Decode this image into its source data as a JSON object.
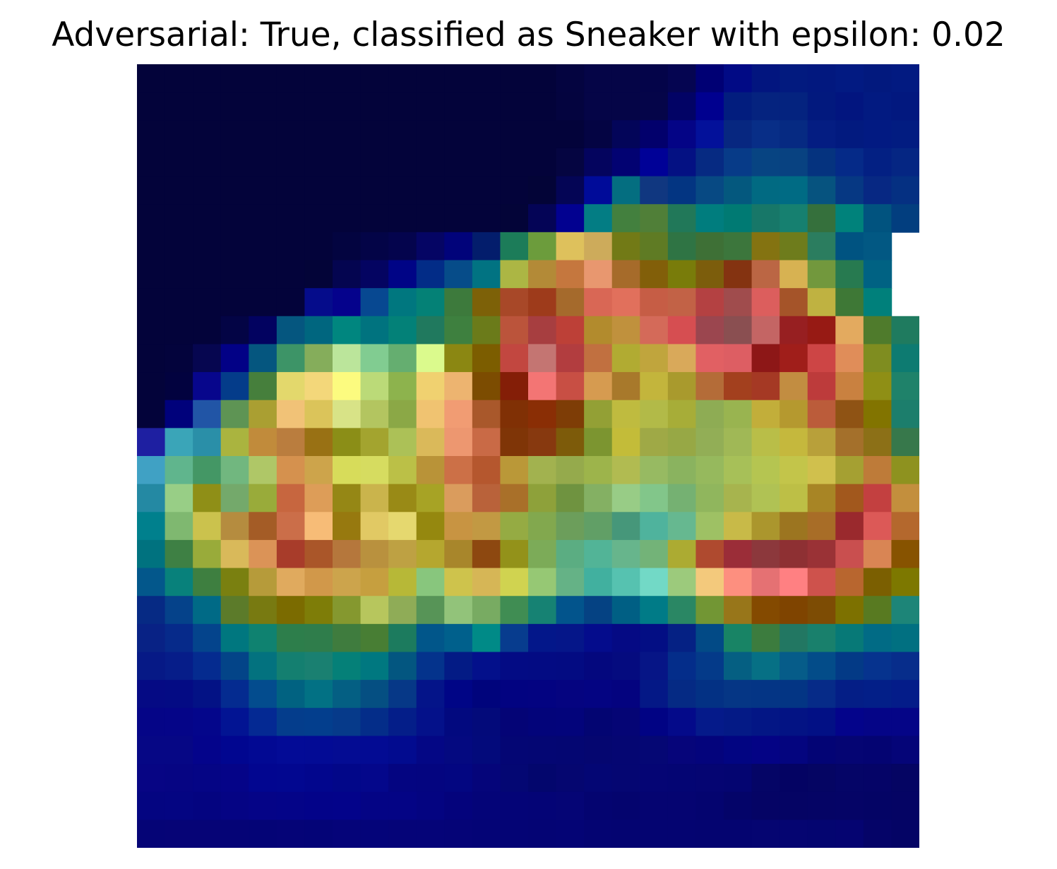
{
  "title": "Adversarial: True, classified as Sneaker with epsilon: 0.02",
  "chart_data": {
    "type": "heatmap",
    "title": "Adversarial: True, classified as Sneaker with epsilon: 0.02",
    "rows": 28,
    "cols": 28,
    "colormap": "overlay of grayscale image with blue-green-yellow-red heat colours",
    "axes_visible": false,
    "cells": [
      "03033a 03033a 03033a 03033a 03033a 03033a 03033a 03033a 03033a 03033a 03033a 03033a 03033a 03033a 03033a 040440 050547 050547 040449 050551 000074 010a85 02157f 021a7f 02187f 021a82 02197e 021a81",
      "03033a 03033a 03033a 03033a 03033a 03033a 03033a 03033a 03033a 03033a 03033a 03033a 03033a 03033a 03033a 04043f 050547 050547 050549 020365 00008f 021d7e 05237f 04237f 02197e 02157f 021a81 02187f",
      "03033a 03033a 03033a 03033a 03033a 03033a 03033a 03033a 03033a 03033a 03033a 03033a 03033a 03033a 03033a 03033a 040443 030559 02006c 040486 03119a 072780 082e87 062a82 041d82 021a7f 021a82 021c81",
      "03033a 03033a 03033a 03033a 03033a 03033a 03033a 03033a 03033a 03033a 03033a 03033a 03033a 03033a 03033a 050541 04045e 020272 000197 041183 062a82 073b88 074482 084281 05337f 052a88 032083 052683",
      "03033a 03033a 03033a 03033a 03033a 03033a 03033a 03033a 03033a 03033a 03033a 03033a 03033a 03033a 030437 040555 000b99 046e80 103780 033582 074983 04587e 016a82 006b84 06537f 063883 072883 053082",
      "03033a 03033a 03033a 03033a 03033a 03033a 03033a 03033a 03033a 03033a 03033a 03033a 03033a 030438 040456 020190 037d84 43803e 507f38 217859 007d7e 007a73 177768 168070 35703c 00827b 01537f 023e7f",
      "03033a 03033a 03033a 03033a 03033a 03033a 03033a 030440 030447 04044d 050564 01037a 031d6c 1c7c59 6c9c3c dec15c cdab5b 727a16 5f7b24 2f7444 3e7036 3c763c 847311 6e7c1c 2b7d5f 005381 025883",
      "03033a 03033a 03033a 03033a 03033a 03033a 030438 040550 040461 000486 022c87 064c89 017382 acb644 b38a37 c5773e e8976f a66b2a 825f09 797c0a 7c5d0c 843311 bb6644 d7b252 72983d 277a50 006283",
      "03033a 03033a 03033a 03033a 03033a 03033a 050c8b 05028c 074891 00777f 048176 3d7a3c 7d6108 a84828 9e3b1b a56a2c d96755 e1705c c65d45 c26246 b44142 a04c4d dc5e5d a55429 bfb241 3e7836 00807b",
      "03033a 03033a 03033a 030445 020260 05567f 00667f 00867f 00737f 038178 20795e 3e803f 6b7b1a bb543b a73e40 bd4037 b28b2d c0913d d46a59 d64e51 9b464f 8a4f51 c46564 971f21 971a14 e3aa5f 4f7b2c 1f7b5f",
      "03033a 03033c 060650 020186 05567f 3d9467 85ad5b bbe59b 81cc91 65ae70 dbfa8d 8b8712 7c5d00 c24740 c47572 b23d3f c17040 b1ab32 c0a53d d9a95a e16063 dd5e63 8d1717 a01e1a cd4545 e08d59 7f8d20 0d7b71",
      "03033a 02023f 07068c 043c8a 467f3c e3d86c f3d77a fcfb7f bbda78 8db34d f0d170 edb470 7c4c01 841e07 f37574 c84f44 d69b50 a8792b c3b53c a99a2d b46c38 a3401e a53924 c28d41 bd3b3b c98140 8f8f15 1f826a",
      "03033a 00017b 2155a6 5e9454 aa9f32 f1c277 dbc45a d8e387 b3c560 8ba846 f0c371 f19c73 a9582b 803005 8a2e05 7e3d06 93a035 bfbb3f b2ba48 a7ad38 8eac54 99b450 c2ae3a b5992f bb5c3a 8f5314 827400 1c7e6c",
      "1e1fa1 3aa5b8 2a8fa8 aab43f c18b3b ba7d3e 997114 8b8e17 a3a42f acc157 dab95a ed9770 c96a46 7f3507 87390f 7d5b0a 7c9530 c3bc39 9fa946 97a845 92ae56 a0b856 b9be48 c5b83d b8a03a a4702b 8c7017 37784b",
      "40a1c4 60b58d 449765 71b77f afc767 d5914e cda44b d7dc5a d6dc60 bbc047 b99338 cc7047 b5572e ba9838 a2b24f 95aa4c 9db44b b1bb51 97ba62 8ab35f 96b95d a7c058 b5c551 c3c54a d0c04d a5a032 be7b39 8e921f",
      "2489a3 98ce86 8f8f17 74a96b 99ab3a c7663f dd9d58 958715 cab44c 998a16 a7a325 da9c5d b9623a a97029 8ea13a 6f9340 84b063 98cc86 82c68a 75b172 90b65d a7b44e b0c254 bdbf46 a88525 a2581d c34040 c38f3d",
      "00808d 7fb870 cbc24d b58c3f a45c26 cb6e49 f7bc77 97790f e1c964 e5d86f 95880f c89442 c29943 95ab43 82a84e 6c9e5b 619f66 46977a 4fb39d 66b890 9ec164 c8ba48 ab962d 9c7520 a86d27 9a292d dc5957 b4682d",
      "00727f 3e8044 99ab3a d9b95a db9357 a83c2a aa5629 b5773c b9913e bea143 b5a72f a8862b 8d4810 93921a 7cab58 5bad82 52b497 67b58c 73b378 acab32 af4a2f 9b2d38 8c383c 8e3033 9a3236 c94f4f d98554 875300",
      "03578b 08817b 3e7f40 7a8010 b69b3a e0aa5e d1984a cca44c c69f3f b7b837 88c67d cec34c d6b656 d0d350 96c874 65b286 41b09f 56c2b0 72d9c6 9cca7c f3c97c fd8f7f e57173 ff8082 ce524c b8662f 7b5f01 7d7800",
      "062a84 05428a 006a86 5c7b2a 787a11 7b6b00 7e7d08 85982f b7c65d 8fac57 579457 92c37a 78ab62 408d53 168273 02548c 054283 005f84 007b87 2a8764 729634 98761a 844a00 7f4400 7d4c04 7d7100 587a21 1d8578",
      "082285 062a8a 04448c 00777f 0f8270 2d7e4b 2f7d4b 3f7c3e 487e34 1c7b5e 01568a 00608c 008a87 073c8e 03178a 051689 040c8c 050a84 030e84 052184 024a86 188465 3c7c3e 227762 19806c 077977 016b85 017081",
      "061986 061d89 052b8f 034488 03727f 147f70 1a8071 058078 007880 035680 04338c 031b85 03108b 030b84 030b83 030b82 04087e 050b7f 061586 042d8a 043a89 055f82 067085 065c89 034c89 033a86 06338e 072d8b",
      "050a84 040b84 031285 042b90 034c8e 016281 027184 045f83 054f82 063887 041489 000586 00047c 020381 030381 050480 040482 04037f 041886 052a84 033184 053685 043585 033584 062b88 041e86 031f88 041c89",
      "050587 050588 04068b 021493 042993 043d8c 033e8d 063a8a 042d89 041e89 04118a 02097f 030a7a 040476 03047a 03047b 030572 050575 010384 040a8a 051a8a 041a86 031685 031384 021085 04048b 050587 050587",
      "060785 060785 04048b 010690 020993 030b96 030b95 040c93 030b93 020b8f 040785 040980 030a7b 040674 040673 040672 050670 050672 050774 06057a 04047c 020582 040385 04057f 030475 050573 040472 050578",
      "070584 060583 050585 050488 020690 020790 02068d 020789 04078b 040581 040580 030681 05057a 040773 03066d 050670 040674 050672 050574 040573 050572 040571 050566 040363 050563 050567 050467 050563",
      "040581 040582 040480 050484 050487 040488 030389 03038a 040485 040485 040481 04037c 040478 040477 040476 050575 040470 04046e 050471 050471 04046f 040469 050465 050464 050465 050466 040465 050464",
      "050476 060476 060476 050476 040476 050477 040477 050479 040479 050478 050478 050477 040476 040475 040474 040475 040472 040471 040471 040471 040470 040470 050571 050571 040570 050471 050468 040465"
    ]
  }
}
